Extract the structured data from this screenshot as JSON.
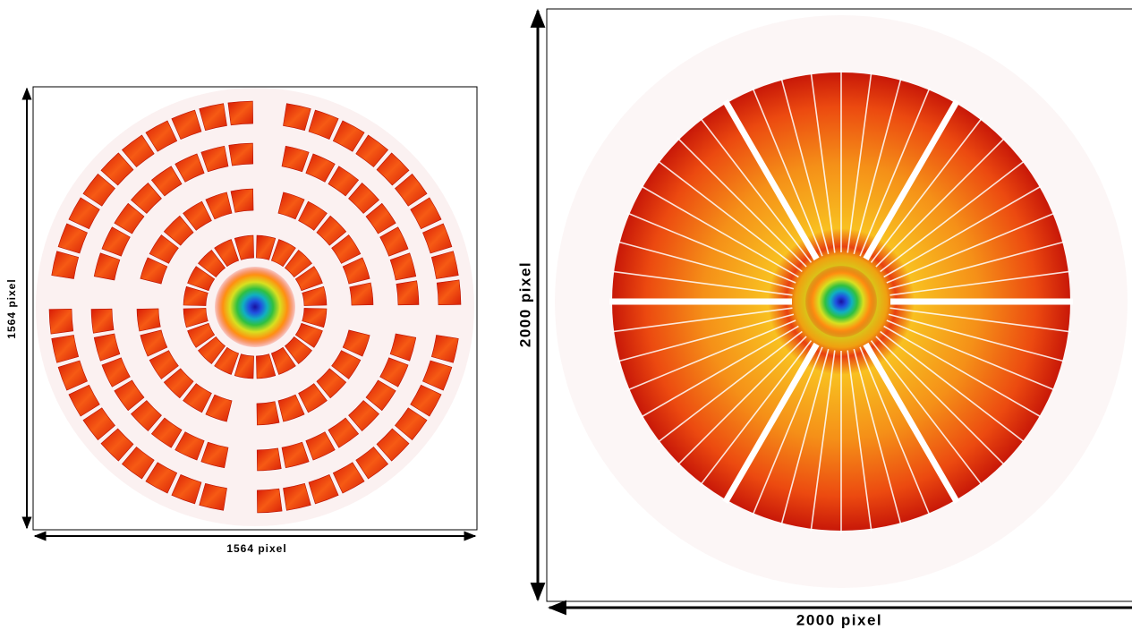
{
  "left_image": {
    "width_label": "1564 pixel",
    "height_label": "1564 pixel"
  },
  "right_image": {
    "width_label": "2000 pixel",
    "height_label": "2000 pixel"
  }
}
